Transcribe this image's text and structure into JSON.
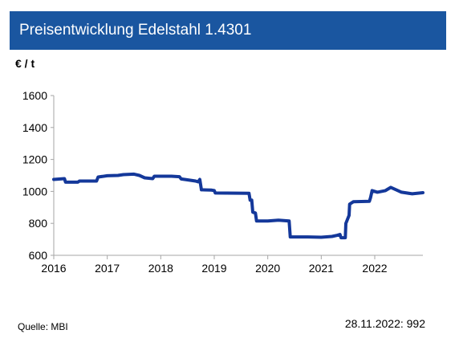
{
  "header": {
    "title": "Preisentwicklung Edelstahl 1.4301"
  },
  "footer": {
    "source": "Quelle: MBI",
    "stamp": "28.11.2022: 992"
  },
  "colors": {
    "header_bg": "#1a56a0",
    "series_line": "#14389a",
    "axis": "#a6a6a6"
  },
  "chart_data": {
    "type": "line",
    "title": "Preisentwicklung Edelstahl 1.4301",
    "ylabel": "€ / t",
    "xlabel": "",
    "xlim": [
      2016.0,
      2022.9
    ],
    "ylim": [
      600,
      1600
    ],
    "yticks": [
      600,
      800,
      1000,
      1200,
      1400,
      1600
    ],
    "xticks": [
      2016,
      2017,
      2018,
      2019,
      2020,
      2021,
      2022
    ],
    "grid": false,
    "series": [
      {
        "values": [
          [
            2016.0,
            1075
          ],
          [
            2016.2,
            1080
          ],
          [
            2016.22,
            1058
          ],
          [
            2016.45,
            1058
          ],
          [
            2016.48,
            1065
          ],
          [
            2016.8,
            1065
          ],
          [
            2016.83,
            1090
          ],
          [
            2017.0,
            1098
          ],
          [
            2017.2,
            1100
          ],
          [
            2017.3,
            1105
          ],
          [
            2017.5,
            1108
          ],
          [
            2017.6,
            1100
          ],
          [
            2017.7,
            1085
          ],
          [
            2017.85,
            1080
          ],
          [
            2017.88,
            1095
          ],
          [
            2018.2,
            1095
          ],
          [
            2018.35,
            1092
          ],
          [
            2018.38,
            1078
          ],
          [
            2018.55,
            1070
          ],
          [
            2018.65,
            1065
          ],
          [
            2018.7,
            1060
          ],
          [
            2018.73,
            1075
          ],
          [
            2018.76,
            1010
          ],
          [
            2018.95,
            1008
          ],
          [
            2019.0,
            1005
          ],
          [
            2019.02,
            990
          ],
          [
            2019.65,
            988
          ],
          [
            2019.67,
            945
          ],
          [
            2019.7,
            945
          ],
          [
            2019.72,
            870
          ],
          [
            2019.77,
            865
          ],
          [
            2019.79,
            815
          ],
          [
            2020.0,
            815
          ],
          [
            2020.2,
            820
          ],
          [
            2020.4,
            815
          ],
          [
            2020.42,
            715
          ],
          [
            2020.75,
            715
          ],
          [
            2021.0,
            713
          ],
          [
            2021.2,
            718
          ],
          [
            2021.3,
            725
          ],
          [
            2021.35,
            730
          ],
          [
            2021.37,
            710
          ],
          [
            2021.45,
            710
          ],
          [
            2021.46,
            800
          ],
          [
            2021.52,
            850
          ],
          [
            2021.53,
            920
          ],
          [
            2021.6,
            935
          ],
          [
            2021.9,
            938
          ],
          [
            2021.92,
            960
          ],
          [
            2021.95,
            1005
          ],
          [
            2022.05,
            995
          ],
          [
            2022.2,
            1005
          ],
          [
            2022.3,
            1025
          ],
          [
            2022.4,
            1010
          ],
          [
            2022.5,
            995
          ],
          [
            2022.7,
            985
          ],
          [
            2022.9,
            992
          ]
        ]
      }
    ]
  }
}
